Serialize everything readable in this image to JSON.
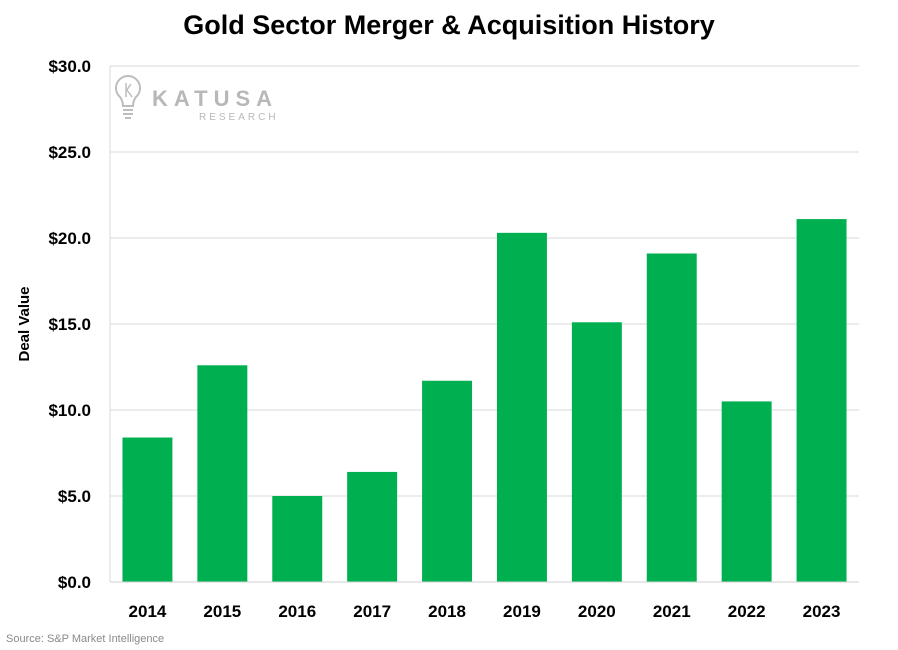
{
  "chart_data": {
    "type": "bar",
    "title": "Gold Sector Merger & Acquisition History",
    "xlabel": "",
    "ylabel": "Deal Value",
    "categories": [
      "2014",
      "2015",
      "2016",
      "2017",
      "2018",
      "2019",
      "2020",
      "2021",
      "2022",
      "2023"
    ],
    "values": [
      8.4,
      12.6,
      5.0,
      6.4,
      11.7,
      20.3,
      15.1,
      19.1,
      10.5,
      21.1
    ],
    "ylim": [
      0,
      30
    ],
    "yticks": [
      0,
      5,
      10,
      15,
      20,
      25,
      30
    ],
    "ytick_labels": [
      "$0.0",
      "$5.0",
      "$10.0",
      "$15.0",
      "$20.0",
      "$25.0",
      "$30.0"
    ],
    "grid": true,
    "bar_color": "#00b050",
    "legend": "none"
  },
  "watermark": {
    "main": "KATUSA",
    "sub": "RESEARCH"
  },
  "source": "Source: S&P Market Intelligence"
}
